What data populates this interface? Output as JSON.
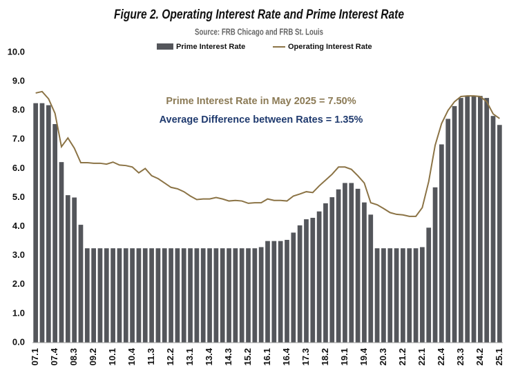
{
  "chart_data": {
    "type": "bar",
    "title": "Figure 2. Operating Interest Rate and Prime Interest Rate",
    "subtitle": "Source: FRB Chicago and FRB St. Louis",
    "annotations": [
      {
        "text": "Prime Interest Rate in May 2025 = 7.50%",
        "color": "#8b7a55"
      },
      {
        "text": "Average Difference between Rates = 1.35%",
        "color": "#1f3a6e"
      }
    ],
    "categories": [
      "07.1",
      null,
      null,
      "07.4",
      null,
      null,
      "08.3",
      null,
      null,
      "09.2",
      null,
      null,
      "10.1",
      null,
      null,
      "10.4",
      null,
      null,
      "11.3",
      null,
      null,
      "12.2",
      null,
      null,
      "13.1",
      null,
      null,
      "13.4",
      null,
      null,
      "14.3",
      null,
      null,
      "15.2",
      null,
      null,
      "16.1",
      null,
      null,
      "16.4",
      null,
      null,
      "17.3",
      null,
      null,
      "18.2",
      null,
      null,
      "19.1",
      null,
      null,
      "19.4",
      null,
      null,
      "20.3",
      null,
      null,
      "21.2",
      null,
      null,
      "22.1",
      null,
      null,
      "22.4",
      null,
      null,
      "23.3",
      null,
      null,
      "24.2",
      null,
      null,
      "25.1"
    ],
    "series": [
      {
        "name": "Prime Interest Rate",
        "type": "bar",
        "color": "#54565b",
        "values": [
          8.25,
          8.25,
          8.18,
          7.53,
          6.22,
          5.08,
          5.0,
          4.06,
          3.25,
          3.25,
          3.25,
          3.25,
          3.25,
          3.25,
          3.25,
          3.25,
          3.25,
          3.25,
          3.25,
          3.25,
          3.25,
          3.25,
          3.25,
          3.25,
          3.25,
          3.25,
          3.25,
          3.25,
          3.25,
          3.25,
          3.25,
          3.25,
          3.25,
          3.25,
          3.25,
          3.29,
          3.5,
          3.5,
          3.5,
          3.54,
          3.79,
          4.04,
          4.25,
          4.3,
          4.52,
          4.8,
          5.01,
          5.28,
          5.5,
          5.5,
          5.3,
          4.83,
          4.41,
          3.25,
          3.25,
          3.25,
          3.25,
          3.25,
          3.25,
          3.25,
          3.29,
          3.96,
          5.35,
          6.83,
          7.71,
          8.15,
          8.43,
          8.5,
          8.5,
          8.5,
          8.43,
          7.81,
          7.5
        ]
      },
      {
        "name": "Operating Interest Rate",
        "type": "line",
        "color": "#8b7345",
        "values": [
          8.6,
          8.65,
          8.4,
          7.9,
          6.75,
          7.05,
          6.7,
          6.2,
          6.2,
          6.18,
          6.18,
          6.15,
          6.22,
          6.12,
          6.1,
          6.05,
          5.85,
          6.0,
          5.75,
          5.65,
          5.5,
          5.35,
          5.3,
          5.2,
          5.05,
          4.93,
          4.95,
          4.95,
          5.0,
          4.95,
          4.88,
          4.9,
          4.88,
          4.8,
          4.82,
          4.82,
          4.95,
          4.9,
          4.9,
          4.88,
          5.05,
          5.12,
          5.2,
          5.17,
          5.4,
          5.6,
          5.8,
          6.05,
          6.05,
          5.97,
          5.75,
          5.5,
          4.82,
          4.75,
          4.62,
          4.48,
          4.42,
          4.4,
          4.35,
          4.35,
          4.65,
          5.55,
          6.8,
          7.55,
          8.0,
          8.3,
          8.48,
          8.5,
          8.5,
          8.48,
          8.3,
          7.88,
          7.72
        ]
      }
    ],
    "ylim": [
      0,
      10
    ],
    "yticks": [
      {
        "value": 0,
        "label": "0.0"
      },
      {
        "value": 1,
        "label": "1.0"
      },
      {
        "value": 2,
        "label": "2.0"
      },
      {
        "value": 3,
        "label": "3.0"
      },
      {
        "value": 4,
        "label": "4.0"
      },
      {
        "value": 5,
        "label": "5.0"
      },
      {
        "value": 6,
        "label": "6.0"
      },
      {
        "value": 7,
        "label": "7.0"
      },
      {
        "value": 8,
        "label": "8.0"
      },
      {
        "value": 9,
        "label": "9.0"
      },
      {
        "value": 10,
        "label": "10.0"
      }
    ],
    "grid": false
  }
}
